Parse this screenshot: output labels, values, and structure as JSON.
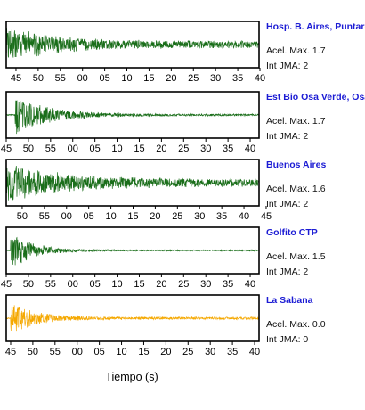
{
  "chart_data": {
    "type": "line",
    "xlabel": "Tiempo (s)",
    "panels": [
      {
        "station": "Hosp. B. Aires, Puntare",
        "acel_label": "Acel. Max. 1.7",
        "jma_label": "Int JMA: 2",
        "color": "#1a6e1a",
        "ticks": [
          "45",
          "50",
          "55",
          "00",
          "05",
          "10",
          "15",
          "20",
          "25",
          "30",
          "35",
          "40"
        ],
        "tick_start_offset": 2.2,
        "signal": {
          "onset": 0.0,
          "amplitude": 0.95,
          "decay": 0.045,
          "noise_floor": 0.18,
          "seed": 11
        }
      },
      {
        "station": "Est Bio Osa Verde, Osa",
        "acel_label": "Acel. Max. 1.7",
        "jma_label": "Int JMA: 2",
        "color": "#1a6e1a",
        "ticks": [
          "45",
          "50",
          "55",
          "00",
          "05",
          "10",
          "15",
          "20",
          "25",
          "30",
          "35",
          "40"
        ],
        "tick_start_offset": 0.0,
        "signal": {
          "onset": 2.0,
          "amplitude": 0.95,
          "decay": 0.06,
          "noise_floor": 0.05,
          "seed": 23
        }
      },
      {
        "station": "Buenos Aires",
        "acel_label": "Acel. Max. 1.6",
        "jma_label": "Int JMA: 2",
        "color": "#1a6e1a",
        "ticks": [
          "50",
          "55",
          "00",
          "05",
          "10",
          "15",
          "20",
          "25",
          "30",
          "35",
          "40",
          "45"
        ],
        "tick_start_offset": 3.6,
        "signal": {
          "onset": 0.0,
          "amplitude": 0.95,
          "decay": 0.035,
          "noise_floor": 0.18,
          "seed": 37
        }
      },
      {
        "station": "Golfito CTP",
        "acel_label": "Acel. Max. 1.5",
        "jma_label": "Int JMA: 2",
        "color": "#1a6e1a",
        "ticks": [
          "45",
          "50",
          "55",
          "00",
          "05",
          "10",
          "15",
          "20",
          "25",
          "30",
          "35",
          "40"
        ],
        "tick_start_offset": 0.0,
        "signal": {
          "onset": 1.0,
          "amplitude": 0.95,
          "decay": 0.09,
          "noise_floor": 0.03,
          "seed": 51
        }
      },
      {
        "station": "La Sabana",
        "acel_label": "Acel. Max. 0.0",
        "jma_label": "Int JMA: 0",
        "color": "#f5a800",
        "ticks": [
          "45",
          "50",
          "55",
          "00",
          "05",
          "10",
          "15",
          "20",
          "25",
          "30",
          "35",
          "40"
        ],
        "tick_start_offset": 1.0,
        "signal": {
          "onset": 1.0,
          "amplitude": 0.85,
          "decay": 0.085,
          "noise_floor": 0.06,
          "seed": 67
        }
      }
    ]
  }
}
